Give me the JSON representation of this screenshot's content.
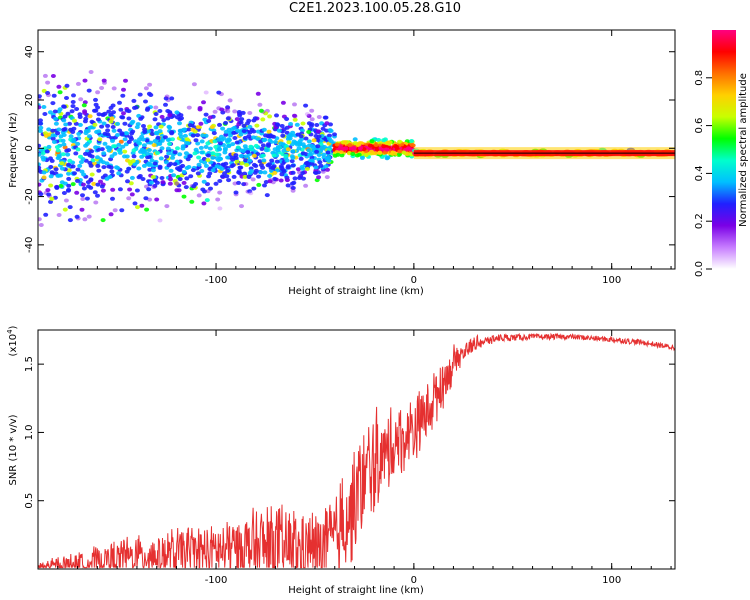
{
  "title": "C2E1.2023.100.05.28.G10",
  "chart_data": [
    {
      "type": "heatmap",
      "xlabel": "Height of straight line (km)",
      "ylabel": "Frequency (Hz)",
      "xlim": [
        -190,
        132
      ],
      "ylim": [
        -50,
        49
      ],
      "xticks": [
        -100,
        0,
        100
      ],
      "yticks": [
        -40,
        -20,
        0,
        20,
        40
      ],
      "colorbar": {
        "label": "Normalized spectral amplitude",
        "range": [
          0,
          1
        ],
        "ticks": [
          "0.0",
          "0.2",
          "0.4",
          "0.6",
          "0.8"
        ],
        "colors": [
          "#ffffff",
          "#c77dff",
          "#7a00e6",
          "#2020ff",
          "#00bfff",
          "#00ffcc",
          "#00ff00",
          "#c8ff00",
          "#ffd000",
          "#ff7000",
          "#ff0000",
          "#ff0080"
        ]
      },
      "features": [
        {
          "x_range": [
            -190,
            -40
          ],
          "center_hz": 0,
          "spread_hz": 12,
          "amplitude": 0.25
        },
        {
          "x_range": [
            -40,
            0
          ],
          "center_hz": 0,
          "spread_hz": 3,
          "amplitude": 0.8
        },
        {
          "x_range": [
            0,
            132
          ],
          "center_hz": -2,
          "spread_hz": 1,
          "amplitude": 0.95
        }
      ]
    },
    {
      "type": "line",
      "xlabel": "Height of straight line (km)",
      "ylabel": "SNR (10 * v/v)",
      "y_multiplier": "(x10",
      "y_multiplier_exp": "4",
      "y_multiplier_close": ")",
      "xlim": [
        -190,
        132
      ],
      "ylim": [
        0,
        1.75
      ],
      "xticks": [
        -100,
        0,
        100
      ],
      "yticks": [
        "0.5",
        "1.0",
        "1.5"
      ],
      "series": [
        {
          "color": "#e53030",
          "x": [
            -190,
            -170,
            -150,
            -130,
            -110,
            -90,
            -70,
            -55,
            -45,
            -38,
            -30,
            -22,
            -16,
            -10,
            -4,
            0,
            4,
            10,
            16,
            22,
            30,
            40,
            60,
            80,
            100,
            115,
            132
          ],
          "y": [
            0.02,
            0.06,
            0.12,
            0.15,
            0.17,
            0.22,
            0.25,
            0.22,
            0.22,
            0.35,
            0.6,
            0.85,
            0.9,
            1.0,
            1.05,
            1.1,
            1.15,
            1.3,
            1.45,
            1.58,
            1.66,
            1.69,
            1.7,
            1.7,
            1.68,
            1.66,
            1.62
          ],
          "noise": [
            0.03,
            0.08,
            0.12,
            0.15,
            0.17,
            0.22,
            0.25,
            0.25,
            0.25,
            0.3,
            0.35,
            0.35,
            0.3,
            0.25,
            0.22,
            0.2,
            0.2,
            0.2,
            0.15,
            0.1,
            0.05,
            0.03,
            0.02,
            0.02,
            0.02,
            0.02,
            0.02
          ]
        }
      ]
    }
  ]
}
